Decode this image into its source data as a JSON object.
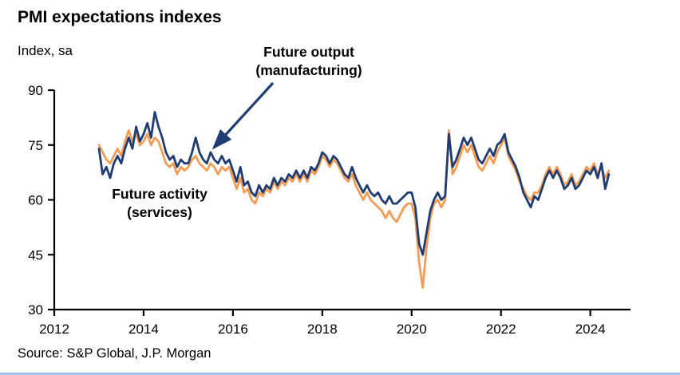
{
  "header": {
    "title": "PMI expectations indexes",
    "subtitle": "Index, sa"
  },
  "annotations": {
    "future_output": "Future output\n(manufacturing)",
    "future_activity": "Future activity\n(services)"
  },
  "source": "Source: S&P Global, J.P. Morgan",
  "chart_data": {
    "type": "line",
    "title": "PMI expectations indexes",
    "ylabel": "Index, sa",
    "xlim": [
      2012,
      2024.9
    ],
    "ylim": [
      30,
      90
    ],
    "yticks": [
      30,
      45,
      60,
      75,
      90
    ],
    "xticks": [
      2012,
      2014,
      2016,
      2018,
      2020,
      2022,
      2024
    ],
    "grid": false,
    "legend_position": "annotations-on-plot",
    "x_start": 2013.0,
    "x_step": 0.08333,
    "axis_color": "#000000",
    "arrow": {
      "color": "#1F3D73",
      "from_svg": [
        342,
        16
      ],
      "to_svg": [
        268,
        97
      ]
    },
    "series": [
      {
        "name": "Future activity (services)",
        "color": "#F49C54",
        "values": [
          75,
          73,
          71,
          70,
          72,
          74,
          72,
          76,
          79,
          76,
          78,
          75,
          76,
          78,
          75,
          77,
          76,
          73,
          70,
          69,
          70,
          67,
          69,
          68,
          69,
          71,
          72,
          70,
          69,
          68,
          70,
          69,
          67,
          69,
          68,
          69,
          66,
          63,
          66,
          62,
          63,
          60,
          59,
          62,
          61,
          63,
          62,
          65,
          63,
          65,
          64,
          66,
          65,
          67,
          65,
          67,
          65,
          68,
          67,
          69,
          72,
          71,
          69,
          71,
          70,
          68,
          66,
          65,
          67,
          64,
          62,
          60,
          62,
          60,
          59,
          58,
          57,
          55,
          57,
          55,
          54,
          56,
          58,
          59,
          59,
          55,
          43,
          36,
          47,
          55,
          59,
          60,
          58,
          60,
          79,
          67,
          69,
          72,
          75,
          73,
          75,
          72,
          69,
          68,
          70,
          72,
          70,
          73,
          75,
          77,
          72,
          70,
          68,
          65,
          63,
          61,
          60,
          62,
          62,
          64,
          67,
          69,
          67,
          69,
          67,
          64,
          65,
          67,
          64,
          65,
          67,
          69,
          68,
          70,
          67,
          69,
          66,
          68
        ]
      },
      {
        "name": "Future output (manufacturing)",
        "color": "#1F3D73",
        "values": [
          74,
          67,
          69,
          66,
          70,
          72,
          70,
          74,
          77,
          74,
          80,
          76,
          78,
          81,
          77,
          84,
          80,
          77,
          73,
          71,
          72,
          69,
          71,
          70,
          70,
          73,
          77,
          73,
          71,
          70,
          73,
          71,
          70,
          72,
          70,
          71,
          68,
          65,
          69,
          64,
          65,
          62,
          61,
          64,
          62,
          64,
          63,
          66,
          64,
          66,
          65,
          67,
          66,
          68,
          66,
          68,
          66,
          69,
          68,
          70,
          73,
          72,
          70,
          72,
          71,
          69,
          67,
          66,
          69,
          66,
          64,
          62,
          64,
          62,
          61,
          62,
          60,
          59,
          61,
          59,
          59,
          60,
          61,
          62,
          62,
          58,
          48,
          45,
          51,
          57,
          60,
          62,
          60,
          61,
          78,
          69,
          71,
          74,
          77,
          75,
          77,
          74,
          71,
          70,
          72,
          74,
          72,
          75,
          76,
          78,
          73,
          71,
          69,
          66,
          62,
          60,
          58,
          61,
          60,
          63,
          66,
          68,
          66,
          68,
          66,
          63,
          64,
          66,
          63,
          64,
          66,
          68,
          67,
          69,
          66,
          70,
          63,
          67
        ]
      }
    ]
  }
}
